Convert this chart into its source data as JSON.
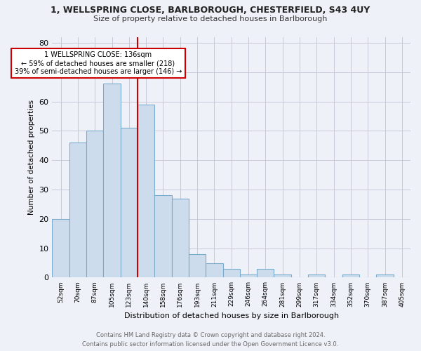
{
  "title_line1": "1, WELLSPRING CLOSE, BARLBOROUGH, CHESTERFIELD, S43 4UY",
  "title_line2": "Size of property relative to detached houses in Barlborough",
  "xlabel": "Distribution of detached houses by size in Barlborough",
  "ylabel": "Number of detached properties",
  "bar_labels": [
    "52sqm",
    "70sqm",
    "87sqm",
    "105sqm",
    "123sqm",
    "140sqm",
    "158sqm",
    "176sqm",
    "193sqm",
    "211sqm",
    "229sqm",
    "246sqm",
    "264sqm",
    "281sqm",
    "299sqm",
    "317sqm",
    "334sqm",
    "352sqm",
    "370sqm",
    "387sqm",
    "405sqm"
  ],
  "bar_values": [
    20,
    46,
    50,
    66,
    51,
    59,
    28,
    27,
    8,
    5,
    3,
    1,
    3,
    1,
    0,
    1,
    0,
    1,
    0,
    1,
    0
  ],
  "bar_color": "#ccdcec",
  "bar_edge_color": "#7aabcb",
  "annotation_text_line1": "1 WELLSPRING CLOSE: 136sqm",
  "annotation_text_line2": "← 59% of detached houses are smaller (218)",
  "annotation_text_line3": "39% of semi-detached houses are larger (146) →",
  "annotation_box_color": "#ffffff",
  "annotation_box_edge": "#cc0000",
  "vline_color": "#cc0000",
  "vline_x_index": 4.5,
  "ylim": [
    0,
    82
  ],
  "yticks": [
    0,
    10,
    20,
    30,
    40,
    50,
    60,
    70,
    80
  ],
  "footer_line1": "Contains HM Land Registry data © Crown copyright and database right 2024.",
  "footer_line2": "Contains public sector information licensed under the Open Government Licence v3.0.",
  "background_color": "#eef2f8",
  "plot_background": "#eef2f8"
}
